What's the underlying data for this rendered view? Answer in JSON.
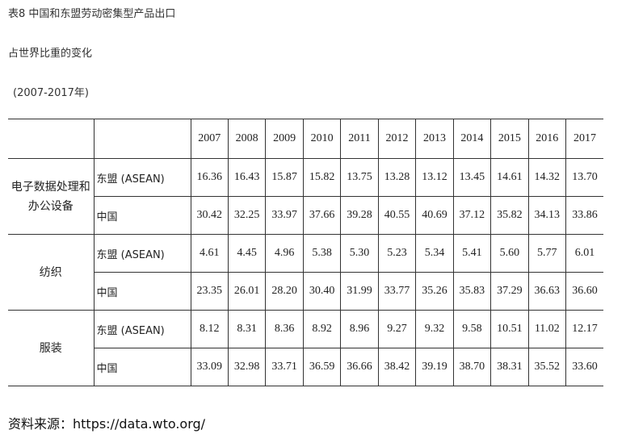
{
  "header": {
    "title": "表8 中国和东盟劳动密集型产品出口",
    "subtitle": "占世界比重的变化",
    "period": "(2007-2017年)"
  },
  "table": {
    "years": [
      "2007",
      "2008",
      "2009",
      "2010",
      "2011",
      "2012",
      "2013",
      "2014",
      "2015",
      "2016",
      "2017"
    ],
    "groups": [
      {
        "category": "电子数据处理和办公设备",
        "rows": [
          {
            "label": "东盟 (ASEAN)",
            "values": [
              "16.36",
              "16.43",
              "15.87",
              "15.82",
              "13.75",
              "13.28",
              "13.12",
              "13.45",
              "14.61",
              "14.32",
              "13.70"
            ]
          },
          {
            "label": "中国",
            "values": [
              "30.42",
              "32.25",
              "33.97",
              "37.66",
              "39.28",
              "40.55",
              "40.69",
              "37.12",
              "35.82",
              "34.13",
              "33.86"
            ]
          }
        ]
      },
      {
        "category": "纺织",
        "rows": [
          {
            "label": "东盟 (ASEAN)",
            "values": [
              "4.61",
              "4.45",
              "4.96",
              "5.38",
              "5.30",
              "5.23",
              "5.34",
              "5.41",
              "5.60",
              "5.77",
              "6.01"
            ]
          },
          {
            "label": "中国",
            "values": [
              "23.35",
              "26.01",
              "28.20",
              "30.40",
              "31.99",
              "33.77",
              "35.26",
              "35.83",
              "37.29",
              "36.63",
              "36.60"
            ]
          }
        ]
      },
      {
        "category": "服装",
        "rows": [
          {
            "label": "东盟 (ASEAN)",
            "values": [
              "8.12",
              "8.31",
              "8.36",
              "8.92",
              "8.96",
              "9.27",
              "9.32",
              "9.58",
              "10.51",
              "11.02",
              "12.17"
            ]
          },
          {
            "label": "中国",
            "values": [
              "33.09",
              "32.98",
              "33.71",
              "36.59",
              "36.66",
              "38.42",
              "39.19",
              "38.70",
              "38.31",
              "35.52",
              "33.60"
            ]
          }
        ]
      }
    ]
  },
  "footer": {
    "source": "资料来源：https://data.wto.org/"
  }
}
